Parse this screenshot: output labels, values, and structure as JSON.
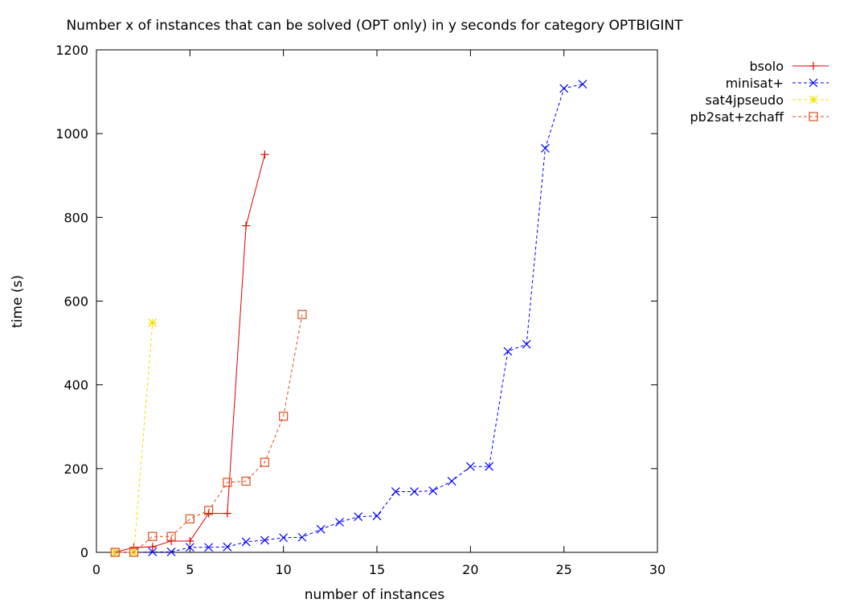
{
  "chart_data": {
    "type": "line",
    "title": "Number x of instances that can be solved (OPT only) in y seconds for category OPTBIGINT",
    "xlabel": "number of instances",
    "ylabel": "time (s)",
    "xlim": [
      0,
      30
    ],
    "ylim": [
      0,
      1200
    ],
    "xticks": [
      0,
      5,
      10,
      15,
      20,
      25,
      30
    ],
    "yticks": [
      0,
      200,
      400,
      600,
      800,
      1000,
      1200
    ],
    "grid": false,
    "legend_position": "top-right, outside plot area",
    "series": [
      {
        "name": "bsolo",
        "color": "#e00000",
        "line_style": "solid",
        "marker": "plus",
        "x": [
          1,
          2,
          3,
          4,
          5,
          6,
          7,
          8,
          9
        ],
        "y": [
          0,
          12,
          13,
          27,
          27,
          93,
          93,
          780,
          950
        ]
      },
      {
        "name": "minisat+",
        "color": "#0000ff",
        "line_style": "dashed",
        "marker": "cross",
        "x": [
          1,
          2,
          3,
          4,
          5,
          6,
          7,
          8,
          9,
          10,
          11,
          12,
          13,
          14,
          15,
          16,
          17,
          18,
          19,
          20,
          21,
          22,
          23,
          24,
          25,
          26
        ],
        "y": [
          0,
          0,
          1,
          1,
          12,
          12,
          13,
          25,
          29,
          35,
          36,
          55,
          72,
          85,
          87,
          145,
          145,
          147,
          170,
          205,
          205,
          480,
          497,
          965,
          1108,
          1118
        ]
      },
      {
        "name": "sat4jpseudo",
        "color": "#f0e000",
        "line_style": "dashed",
        "marker": "star",
        "x": [
          1,
          2,
          3
        ],
        "y": [
          0,
          0,
          548
        ]
      },
      {
        "name": "pb2sat+zchaff",
        "color": "#e0501a",
        "line_style": "dashed",
        "marker": "square",
        "x": [
          1,
          2,
          3,
          4,
          5,
          6,
          7,
          8,
          9,
          10,
          11
        ],
        "y": [
          0,
          0,
          38,
          38,
          80,
          100,
          167,
          170,
          215,
          325,
          568
        ]
      }
    ]
  }
}
